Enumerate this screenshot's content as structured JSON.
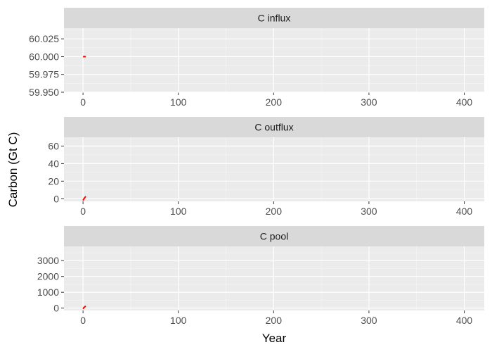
{
  "chart_data": {
    "type": "line",
    "xlabel": "Year",
    "ylabel": "Carbon (Gt C)",
    "xlim": [
      -20,
      421
    ],
    "x_ticks": [
      0,
      100,
      200,
      300,
      400
    ],
    "x_tick_labels": [
      "0",
      "100",
      "200",
      "300",
      "400"
    ],
    "grid": true,
    "panels": [
      {
        "title": "C influx",
        "ylim": [
          59.95,
          60.04
        ],
        "y_ticks": [
          59.95,
          59.975,
          60.0,
          60.025
        ],
        "y_tick_labels": [
          "59.950",
          "59.975",
          "60.000",
          "60.025"
        ],
        "series": [
          {
            "color": "#ff0000",
            "x": [
              0,
              1,
              2,
              3
            ],
            "y": [
              60.0,
              60.0,
              60.0,
              60.0
            ]
          }
        ]
      },
      {
        "title": "C outflux",
        "ylim": [
          -3,
          70
        ],
        "y_ticks": [
          0,
          20,
          40,
          60
        ],
        "y_tick_labels": [
          "0",
          "20",
          "40",
          "60"
        ],
        "series": [
          {
            "color": "#ff0000",
            "x": [
              0,
              1,
              2,
              3
            ],
            "y": [
              -2,
              0,
              1.5,
              2.5
            ]
          }
        ]
      },
      {
        "title": "C pool",
        "ylim": [
          -150,
          3900
        ],
        "y_ticks": [
          0,
          1000,
          2000,
          3000
        ],
        "y_tick_labels": [
          "0",
          "1000",
          "2000",
          "3000"
        ],
        "series": [
          {
            "color": "#ff0000",
            "x": [
              0,
              1,
              2,
              3
            ],
            "y": [
              -50,
              40,
              90,
              120
            ]
          }
        ]
      }
    ]
  }
}
